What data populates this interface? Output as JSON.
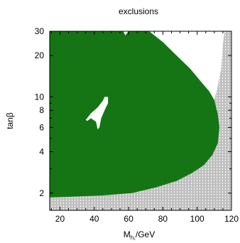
{
  "chart_data": {
    "type": "area",
    "title": "exclusions",
    "xlabel": {
      "main": "M",
      "sub": "h₁",
      "unit": "/GeV"
    },
    "ylabel": "tanβ",
    "xlim": [
      14,
      120
    ],
    "ylim": [
      1.5,
      30
    ],
    "y_scale": "log",
    "x_ticks": [
      20,
      40,
      60,
      80,
      100,
      120
    ],
    "y_ticks": [
      2,
      4,
      6,
      8,
      10,
      20,
      30
    ],
    "grid": false,
    "colors": {
      "excluded": "#157515",
      "unphysical": "#c0c0c0",
      "background": "#ffffff"
    },
    "regions": [
      {
        "name": "excluded",
        "boundary": [
          [
            14,
            30
          ],
          [
            57,
            30
          ],
          [
            58,
            28
          ],
          [
            60,
            30
          ],
          [
            72,
            30
          ],
          [
            80,
            25
          ],
          [
            88,
            20
          ],
          [
            96,
            16
          ],
          [
            102,
            13
          ],
          [
            107,
            11
          ],
          [
            110,
            9.5
          ],
          [
            112,
            7.5
          ],
          [
            113,
            6
          ],
          [
            112,
            4.6
          ],
          [
            109,
            3.8
          ],
          [
            104,
            3.2
          ],
          [
            97,
            2.8
          ],
          [
            88,
            2.45
          ],
          [
            76,
            2.2
          ],
          [
            62,
            2.0
          ],
          [
            44,
            1.92
          ],
          [
            26,
            1.88
          ],
          [
            14,
            1.86
          ]
        ]
      },
      {
        "name": "unphysical",
        "boundary": [
          [
            14,
            1.5
          ],
          [
            14,
            1.86
          ],
          [
            26,
            1.88
          ],
          [
            44,
            1.92
          ],
          [
            62,
            2.0
          ],
          [
            76,
            2.2
          ],
          [
            88,
            2.45
          ],
          [
            97,
            2.8
          ],
          [
            104,
            3.2
          ],
          [
            109,
            3.8
          ],
          [
            112,
            4.6
          ],
          [
            113,
            6
          ],
          [
            112,
            7.5
          ],
          [
            110,
            9.5
          ],
          [
            112,
            12
          ],
          [
            114,
            16
          ],
          [
            115,
            24
          ],
          [
            116,
            30
          ],
          [
            120,
            30
          ],
          [
            120,
            1.5
          ]
        ]
      },
      {
        "name": "allowed-hole",
        "boundary": [
          [
            35,
            6.8
          ],
          [
            38,
            7.6
          ],
          [
            42,
            8.4
          ],
          [
            45,
            9.4
          ],
          [
            46,
            10
          ],
          [
            48,
            10
          ],
          [
            48,
            9
          ],
          [
            46,
            8
          ],
          [
            44,
            7
          ],
          [
            43,
            6
          ],
          [
            42,
            5.8
          ],
          [
            41,
            6.6
          ],
          [
            38,
            7.0
          ],
          [
            36,
            6.7
          ]
        ]
      }
    ]
  }
}
